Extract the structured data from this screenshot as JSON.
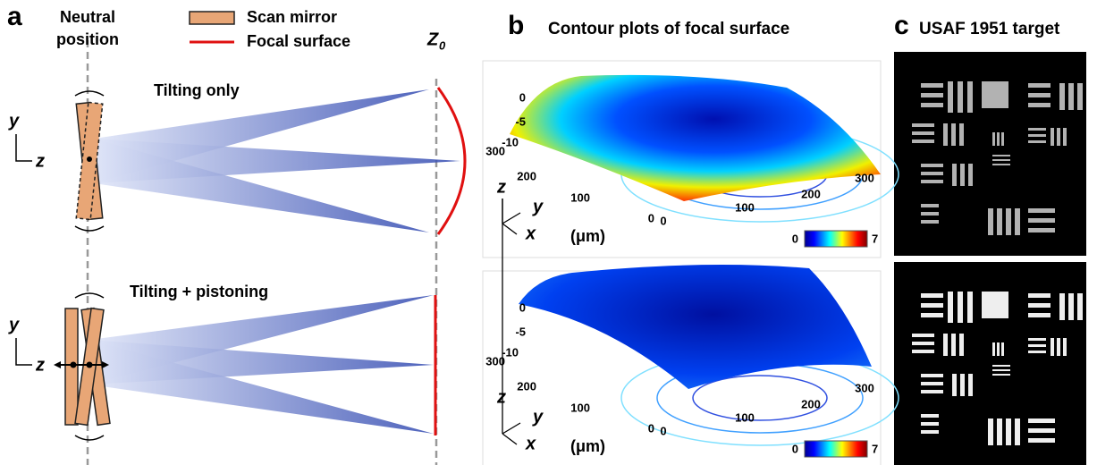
{
  "panel_a": {
    "label": "a",
    "neutral": [
      "Neutral",
      "position"
    ],
    "legend": [
      "Scan mirror",
      "Focal surface"
    ],
    "z0": {
      "symbol": "Z",
      "subscript": "0"
    },
    "top_title": "Tilting only",
    "bottom_title": "Tilting + pistoning",
    "axes_top": {
      "y": "y",
      "z": "z"
    },
    "axes_bottom": {
      "y": "y",
      "z": "z"
    }
  },
  "panel_b": {
    "label": "b",
    "title": "Contour plots of focal surface",
    "plots": [
      {
        "z_ticks": [
          "0",
          "-5",
          "-10"
        ],
        "y_ticks": [
          "300",
          "200",
          "100",
          "0"
        ],
        "x_ticks": [
          "0",
          "100",
          "200",
          "300"
        ],
        "axes": [
          "z",
          "y",
          "x"
        ],
        "unit": "(μm)",
        "colorbar": [
          "0",
          "7"
        ]
      },
      {
        "z_ticks": [
          "0",
          "-5",
          "-10"
        ],
        "y_ticks": [
          "300",
          "200",
          "100",
          "0"
        ],
        "x_ticks": [
          "0",
          "100",
          "200",
          "300"
        ],
        "axes": [
          "z",
          "y",
          "x"
        ],
        "unit": "(μm)",
        "colorbar": [
          "0",
          "7"
        ]
      }
    ]
  },
  "panel_c": {
    "label": "c",
    "title": "USAF 1951 target"
  }
}
